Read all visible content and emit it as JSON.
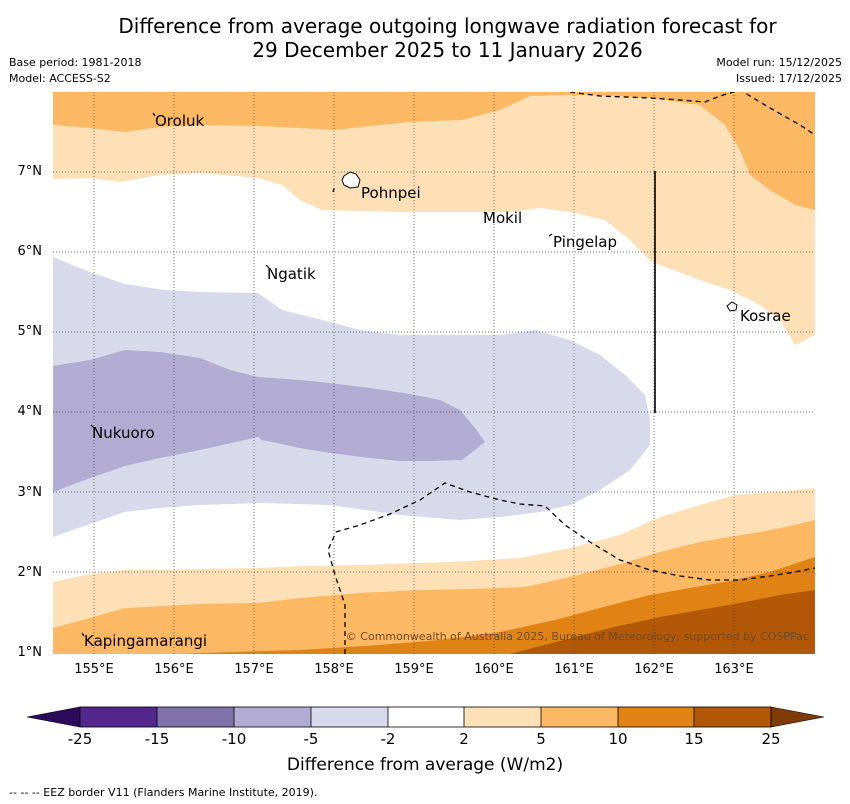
{
  "title": {
    "line1": "Difference from average outgoing longwave radiation forecast for",
    "line2": "29 December 2025 to 11 January 2026"
  },
  "meta_left": {
    "base_period": "Base period: 1981-2018",
    "model": "Model: ACCESS-S2"
  },
  "meta_right": {
    "model_run": "Model run: 15/12/2025",
    "issued": "Issued: 17/12/2025"
  },
  "map": {
    "lat_labels": [
      "7°N",
      "6°N",
      "5°N",
      "4°N",
      "3°N",
      "2°N",
      "1°N"
    ],
    "lon_labels": [
      "155°E",
      "156°E",
      "157°E",
      "158°E",
      "159°E",
      "160°E",
      "161°E",
      "162°E",
      "163°E"
    ],
    "places": {
      "oroluk": "Oroluk",
      "pohnpei": "Pohnpei",
      "mokil": "Mokil",
      "pingelap": "Pingelap",
      "ngatik": "Ngatik",
      "kosrae": "Kosrae",
      "nukuoro": "Nukuoro",
      "kapingamarangi": "Kapingamarangi"
    },
    "copyright": "© Commonwealth of Australia 2025, Bureau of Meteorology, supported by COSPPac"
  },
  "colorbar": {
    "ticks": [
      "-25",
      "-15",
      "-10",
      "-5",
      "-2",
      "2",
      "5",
      "10",
      "15",
      "25"
    ],
    "colors": {
      "below_-25": "#2e0b5a",
      "-25_-15": "#54278f",
      "-15_-10": "#8073ac",
      "-10_-5": "#b2abd2",
      "-5_-2": "#d8daeb",
      "-2_2": "#ffffff",
      "2_5": "#fee0b6",
      "5_10": "#fdb863",
      "10_15": "#e08214",
      "15_25": "#b35806",
      "above_25": "#7f3b08"
    },
    "label": "Difference from average (W/m2)"
  },
  "footer": "--  --  -- EEZ border V11 (Flanders Marine Institute, 2019)."
}
